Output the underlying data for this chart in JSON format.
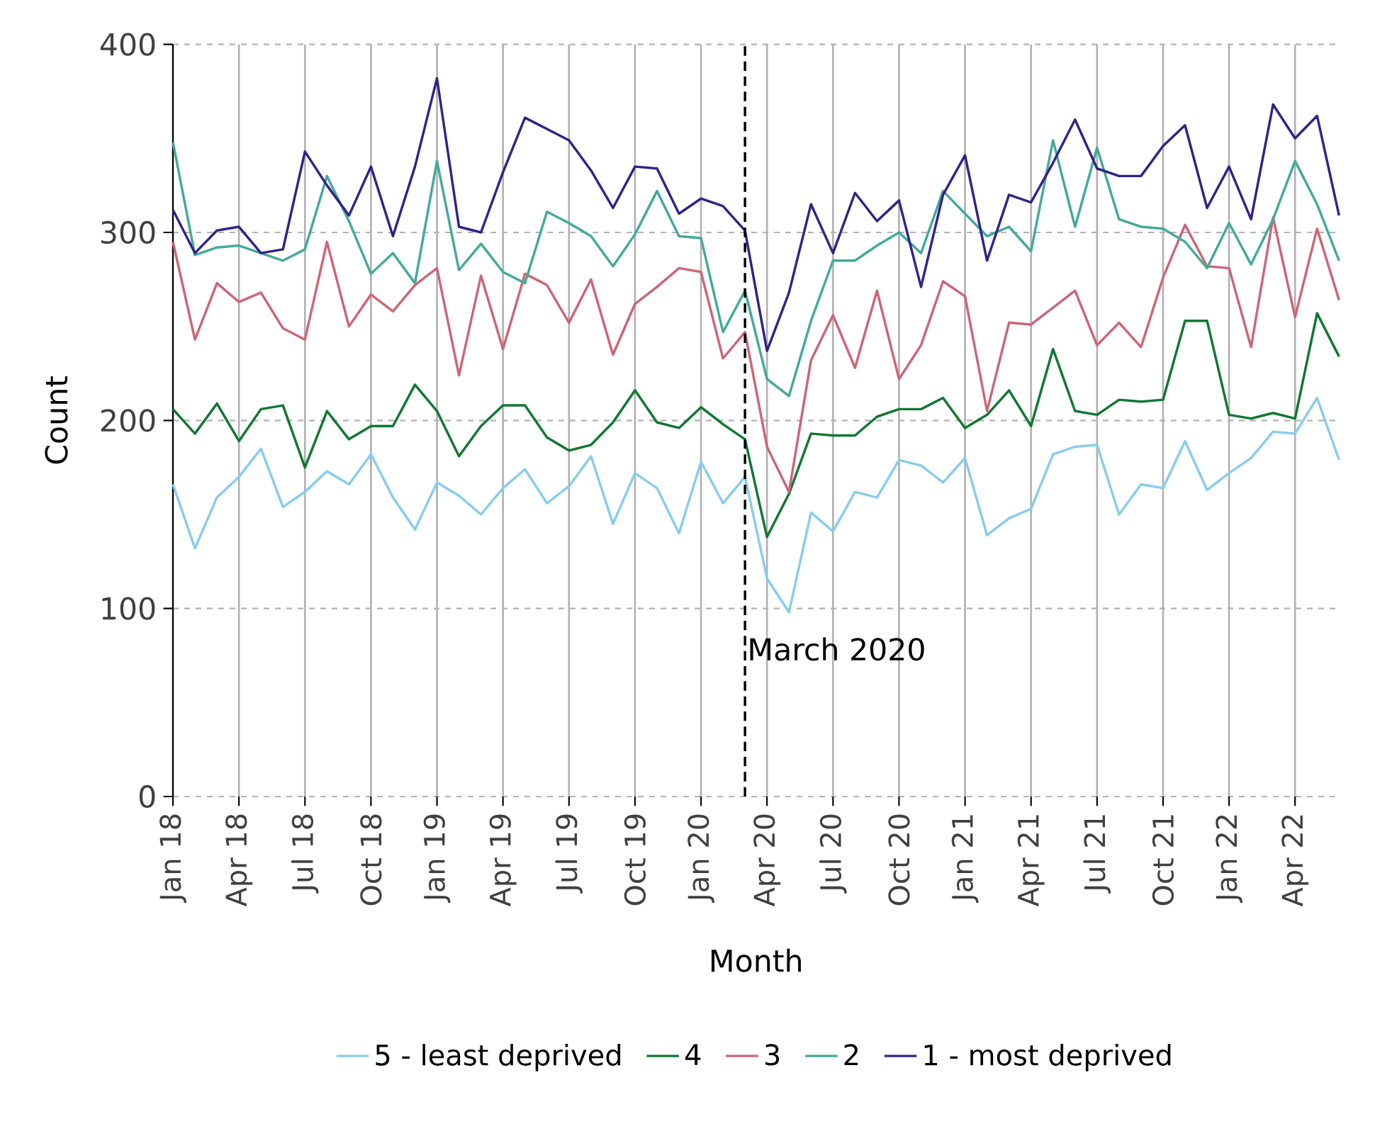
{
  "chart_data": {
    "type": "line",
    "xlabel": "Month",
    "ylabel": "Count",
    "x": [
      "2018-01",
      "2018-02",
      "2018-03",
      "2018-04",
      "2018-05",
      "2018-06",
      "2018-07",
      "2018-08",
      "2018-09",
      "2018-10",
      "2018-11",
      "2018-12",
      "2019-01",
      "2019-02",
      "2019-03",
      "2019-04",
      "2019-05",
      "2019-06",
      "2019-07",
      "2019-08",
      "2019-09",
      "2019-10",
      "2019-11",
      "2019-12",
      "2020-01",
      "2020-02",
      "2020-03",
      "2020-04",
      "2020-05",
      "2020-06",
      "2020-07",
      "2020-08",
      "2020-09",
      "2020-10",
      "2020-11",
      "2020-12",
      "2021-01",
      "2021-02",
      "2021-03",
      "2021-04",
      "2021-05",
      "2021-06",
      "2021-07",
      "2021-08",
      "2021-09",
      "2021-10",
      "2021-11",
      "2021-12",
      "2022-01",
      "2022-02",
      "2022-03",
      "2022-04",
      "2022-05",
      "2022-06"
    ],
    "series": [
      {
        "name": "5 - least deprived",
        "color": "#88ccee",
        "values": [
          166,
          132,
          159,
          170,
          185,
          154,
          162,
          173,
          166,
          182,
          159,
          142,
          167,
          160,
          150,
          164,
          174,
          156,
          165,
          181,
          145,
          172,
          164,
          140,
          178,
          156,
          170,
          116,
          98,
          151,
          141,
          162,
          159,
          179,
          176,
          167,
          180,
          139,
          148,
          153,
          182,
          186,
          187,
          150,
          166,
          164,
          189,
          163,
          172,
          180,
          194,
          193,
          212,
          179
        ]
      },
      {
        "name": "4",
        "color": "#117733",
        "values": [
          206,
          193,
          209,
          189,
          206,
          208,
          175,
          205,
          190,
          197,
          197,
          219,
          205,
          181,
          197,
          208,
          208,
          191,
          184,
          187,
          199,
          216,
          199,
          196,
          207,
          198,
          190,
          138,
          161,
          193,
          192,
          192,
          202,
          206,
          206,
          212,
          196,
          203,
          216,
          197,
          238,
          205,
          203,
          211,
          210,
          211,
          253,
          253,
          203,
          201,
          204,
          201,
          257,
          234
        ]
      },
      {
        "name": "3",
        "color": "#cc6677",
        "values": [
          295,
          243,
          273,
          263,
          268,
          249,
          243,
          295,
          250,
          267,
          258,
          272,
          281,
          224,
          277,
          238,
          278,
          272,
          252,
          275,
          235,
          262,
          271,
          281,
          279,
          233,
          247,
          186,
          162,
          232,
          256,
          228,
          269,
          222,
          240,
          274,
          266,
          205,
          252,
          251,
          260,
          269,
          240,
          252,
          239,
          276,
          304,
          282,
          281,
          239,
          308,
          255,
          302,
          264
        ]
      },
      {
        "name": "2",
        "color": "#44aa99",
        "values": [
          348,
          288,
          292,
          293,
          289,
          285,
          291,
          330,
          306,
          278,
          289,
          273,
          338,
          280,
          294,
          279,
          273,
          311,
          305,
          298,
          282,
          299,
          322,
          298,
          297,
          247,
          269,
          222,
          213,
          253,
          285,
          285,
          293,
          300,
          289,
          322,
          310,
          298,
          303,
          290,
          349,
          303,
          345,
          307,
          303,
          302,
          295,
          281,
          305,
          283,
          307,
          338,
          315,
          285
        ]
      },
      {
        "name": "1 - most deprived",
        "color": "#332288",
        "values": [
          312,
          289,
          301,
          303,
          289,
          291,
          343,
          325,
          309,
          335,
          298,
          335,
          382,
          303,
          300,
          332,
          361,
          355,
          349,
          333,
          313,
          335,
          334,
          310,
          318,
          314,
          301,
          237,
          268,
          315,
          289,
          321,
          306,
          317,
          271,
          320,
          341,
          285,
          320,
          316,
          337,
          360,
          334,
          330,
          330,
          346,
          357,
          313,
          335,
          307,
          368,
          350,
          362,
          309
        ]
      }
    ],
    "xlim": [
      "2018-01",
      "2022-06"
    ],
    "xticks": [
      {
        "value": "2018-01",
        "label": "Jan 18"
      },
      {
        "value": "2018-04",
        "label": "Apr 18"
      },
      {
        "value": "2018-07",
        "label": "Jul 18"
      },
      {
        "value": "2018-10",
        "label": "Oct 18"
      },
      {
        "value": "2019-01",
        "label": "Jan 19"
      },
      {
        "value": "2019-04",
        "label": "Apr 19"
      },
      {
        "value": "2019-07",
        "label": "Jul 19"
      },
      {
        "value": "2019-10",
        "label": "Oct 19"
      },
      {
        "value": "2020-01",
        "label": "Jan 20"
      },
      {
        "value": "2020-04",
        "label": "Apr 20"
      },
      {
        "value": "2020-07",
        "label": "Jul 20"
      },
      {
        "value": "2020-10",
        "label": "Oct 20"
      },
      {
        "value": "2021-01",
        "label": "Jan 21"
      },
      {
        "value": "2021-04",
        "label": "Apr 21"
      },
      {
        "value": "2021-07",
        "label": "Jul 21"
      },
      {
        "value": "2021-10",
        "label": "Oct 21"
      },
      {
        "value": "2022-01",
        "label": "Jan 22"
      },
      {
        "value": "2022-04",
        "label": "Apr 22"
      }
    ],
    "ylim": [
      0,
      400
    ],
    "yticks": [
      0,
      100,
      200,
      300,
      400
    ],
    "ref_lines": [
      {
        "axis": "x",
        "value": "2020-03",
        "label": "March 2020",
        "color": "#000000",
        "line_style": "dashed"
      }
    ],
    "grid": true,
    "legend": "bottom"
  }
}
